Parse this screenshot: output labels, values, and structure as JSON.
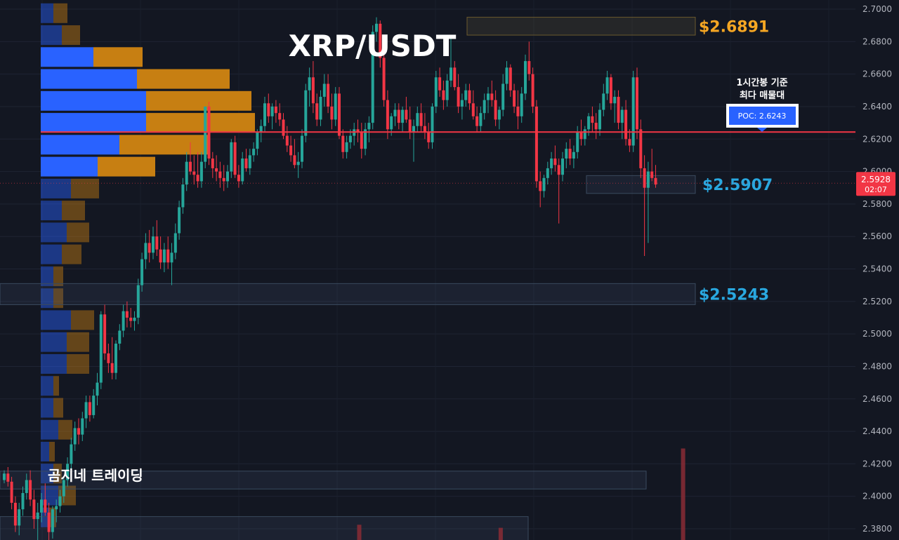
{
  "colors": {
    "background": "#131722",
    "up": "#26a69a",
    "down": "#f23645",
    "poc_line": "#f23645",
    "vp_up": "#2962ff",
    "vp_down": "#c77f12",
    "label_orange": "#f5a623",
    "label_blue": "#29a8e0",
    "price_badge": "#f23645"
  },
  "chart_data": {
    "type": "candlestick",
    "title": "XRP/USDT",
    "watermark": "곰지네 트레이딩",
    "ylim": [
      2.37,
      2.705
    ],
    "y_ticks": [
      "2.7000",
      "2.6800",
      "2.6600",
      "2.6400",
      "2.6200",
      "2.6000",
      "2.5800",
      "2.5600",
      "2.5400",
      "2.5200",
      "2.5000",
      "2.4800",
      "2.4600",
      "2.4400",
      "2.4200",
      "2.4000",
      "2.3800"
    ],
    "last_price": "2.5928",
    "countdown": "02:07",
    "poc": {
      "value": 2.6243,
      "label": "POC: 2.6243",
      "note_line1": "1시간봉 기준",
      "note_line2": "최다 매물대"
    },
    "levels": [
      {
        "label": "$2.6891",
        "low": 2.684,
        "high": 2.695,
        "color": "orange"
      },
      {
        "label": "$2.5907",
        "low": 2.5865,
        "high": 2.5975,
        "color": "blue"
      },
      {
        "label": "$2.5243",
        "low": 2.518,
        "high": 2.531,
        "color": "blue"
      }
    ],
    "extra_zones": [
      {
        "low": 2.4045,
        "high": 2.4155
      },
      {
        "low": 2.366,
        "high": 2.3875
      }
    ],
    "volume_profile_rows": [
      {
        "price": 2.6975,
        "up": 18,
        "down": 20
      },
      {
        "price": 2.684,
        "up": 30,
        "down": 26
      },
      {
        "price": 2.6705,
        "up": 75,
        "down": 70
      },
      {
        "price": 2.657,
        "up": 137,
        "down": 132
      },
      {
        "price": 2.6435,
        "up": 150,
        "down": 150
      },
      {
        "price": 2.63,
        "up": 150,
        "down": 155
      },
      {
        "price": 2.6165,
        "up": 112,
        "down": 127
      },
      {
        "price": 2.603,
        "up": 81,
        "down": 82
      },
      {
        "price": 2.5895,
        "up": 43,
        "down": 40
      },
      {
        "price": 2.576,
        "up": 30,
        "down": 33
      },
      {
        "price": 2.5625,
        "up": 37,
        "down": 32
      },
      {
        "price": 2.549,
        "up": 30,
        "down": 28
      },
      {
        "price": 2.5355,
        "up": 18,
        "down": 14
      },
      {
        "price": 2.522,
        "up": 18,
        "down": 14
      },
      {
        "price": 2.5085,
        "up": 43,
        "down": 33
      },
      {
        "price": 2.495,
        "up": 37,
        "down": 32
      },
      {
        "price": 2.4815,
        "up": 37,
        "down": 32
      },
      {
        "price": 2.468,
        "up": 18,
        "down": 8
      },
      {
        "price": 2.4545,
        "up": 18,
        "down": 14
      },
      {
        "price": 2.441,
        "up": 25,
        "down": 20
      },
      {
        "price": 2.4275,
        "up": 12,
        "down": 8
      },
      {
        "price": 2.414,
        "up": 18,
        "down": 12
      },
      {
        "price": 2.4005,
        "up": 25,
        "down": 25
      },
      {
        "price": 2.387,
        "up": 12,
        "down": 10
      }
    ],
    "candles": [
      [
        2.41,
        2.416,
        2.408,
        2.414
      ],
      [
        2.414,
        2.418,
        2.406,
        2.409
      ],
      [
        2.409,
        2.412,
        2.392,
        2.396
      ],
      [
        2.396,
        2.4,
        2.378,
        2.382
      ],
      [
        2.382,
        2.396,
        2.376,
        2.392
      ],
      [
        2.392,
        2.406,
        2.388,
        2.402
      ],
      [
        2.402,
        2.414,
        2.398,
        2.41
      ],
      [
        2.41,
        2.416,
        2.394,
        2.398
      ],
      [
        2.398,
        2.404,
        2.38,
        2.386
      ],
      [
        2.386,
        2.396,
        2.372,
        2.39
      ],
      [
        2.39,
        2.402,
        2.384,
        2.398
      ],
      [
        2.398,
        2.408,
        2.388,
        2.39
      ],
      [
        2.39,
        2.396,
        2.372,
        2.378
      ],
      [
        2.378,
        2.394,
        2.374,
        2.392
      ],
      [
        2.392,
        2.398,
        2.384,
        2.394
      ],
      [
        2.394,
        2.404,
        2.39,
        2.4
      ],
      [
        2.4,
        2.412,
        2.396,
        2.41
      ],
      [
        2.41,
        2.424,
        2.406,
        2.42
      ],
      [
        2.42,
        2.436,
        2.416,
        2.432
      ],
      [
        2.432,
        2.446,
        2.428,
        2.442
      ],
      [
        2.442,
        2.448,
        2.432,
        2.438
      ],
      [
        2.438,
        2.452,
        2.434,
        2.448
      ],
      [
        2.448,
        2.462,
        2.442,
        2.458
      ],
      [
        2.458,
        2.462,
        2.446,
        2.45
      ],
      [
        2.45,
        2.466,
        2.448,
        2.462
      ],
      [
        2.462,
        2.476,
        2.456,
        2.47
      ],
      [
        2.47,
        2.514,
        2.466,
        2.512
      ],
      [
        2.512,
        2.518,
        2.484,
        2.488
      ],
      [
        2.488,
        2.494,
        2.476,
        2.482
      ],
      [
        2.482,
        2.498,
        2.472,
        2.476
      ],
      [
        2.476,
        2.496,
        2.472,
        2.494
      ],
      [
        2.494,
        2.506,
        2.49,
        2.502
      ],
      [
        2.502,
        2.518,
        2.498,
        2.514
      ],
      [
        2.514,
        2.52,
        2.504,
        2.51
      ],
      [
        2.51,
        2.516,
        2.504,
        2.508
      ],
      [
        2.508,
        2.514,
        2.502,
        2.51
      ],
      [
        2.51,
        2.534,
        2.506,
        2.53
      ],
      [
        2.53,
        2.55,
        2.526,
        2.546
      ],
      [
        2.546,
        2.562,
        2.54,
        2.556
      ],
      [
        2.556,
        2.564,
        2.544,
        2.55
      ],
      [
        2.55,
        2.566,
        2.546,
        2.56
      ],
      [
        2.56,
        2.57,
        2.548,
        2.552
      ],
      [
        2.552,
        2.56,
        2.54,
        2.544
      ],
      [
        2.544,
        2.556,
        2.538,
        2.552
      ],
      [
        2.552,
        2.56,
        2.54,
        2.544
      ],
      [
        2.544,
        2.556,
        2.53,
        2.55
      ],
      [
        2.55,
        2.568,
        2.546,
        2.562
      ],
      [
        2.562,
        2.582,
        2.558,
        2.578
      ],
      [
        2.578,
        2.596,
        2.574,
        2.592
      ],
      [
        2.592,
        2.612,
        2.588,
        2.606
      ],
      [
        2.606,
        2.618,
        2.598,
        2.6
      ],
      [
        2.6,
        2.61,
        2.592,
        2.598
      ],
      [
        2.598,
        2.612,
        2.59,
        2.594
      ],
      [
        2.594,
        2.612,
        2.59,
        2.606
      ],
      [
        2.606,
        2.64,
        2.602,
        2.64
      ],
      [
        2.64,
        2.643,
        2.604,
        2.608
      ],
      [
        2.608,
        2.612,
        2.596,
        2.602
      ],
      [
        2.602,
        2.61,
        2.594,
        2.6
      ],
      [
        2.6,
        2.606,
        2.59,
        2.596
      ],
      [
        2.596,
        2.604,
        2.588,
        2.594
      ],
      [
        2.594,
        2.604,
        2.59,
        2.6
      ],
      [
        2.6,
        2.62,
        2.596,
        2.618
      ],
      [
        2.618,
        2.622,
        2.596,
        2.598
      ],
      [
        2.598,
        2.604,
        2.59,
        2.594
      ],
      [
        2.594,
        2.612,
        2.592,
        2.608
      ],
      [
        2.608,
        2.614,
        2.6,
        2.602
      ],
      [
        2.602,
        2.614,
        2.598,
        2.61
      ],
      [
        2.61,
        2.618,
        2.606,
        2.614
      ],
      [
        2.614,
        2.626,
        2.61,
        2.624
      ],
      [
        2.624,
        2.632,
        2.618,
        2.628
      ],
      [
        2.628,
        2.646,
        2.624,
        2.642
      ],
      [
        2.642,
        2.648,
        2.63,
        2.634
      ],
      [
        2.634,
        2.642,
        2.626,
        2.64
      ],
      [
        2.64,
        2.644,
        2.63,
        2.636
      ],
      [
        2.636,
        2.642,
        2.628,
        2.632
      ],
      [
        2.632,
        2.636,
        2.62,
        2.622
      ],
      [
        2.622,
        2.628,
        2.612,
        2.616
      ],
      [
        2.616,
        2.622,
        2.606,
        2.61
      ],
      [
        2.61,
        2.62,
        2.602,
        2.604
      ],
      [
        2.604,
        2.612,
        2.596,
        2.606
      ],
      [
        2.606,
        2.626,
        2.602,
        2.622
      ],
      [
        2.622,
        2.654,
        2.618,
        2.65
      ],
      [
        2.65,
        2.664,
        2.64,
        2.658
      ],
      [
        2.658,
        2.668,
        2.636,
        2.642
      ],
      [
        2.642,
        2.648,
        2.628,
        2.632
      ],
      [
        2.632,
        2.65,
        2.628,
        2.646
      ],
      [
        2.646,
        2.66,
        2.64,
        2.654
      ],
      [
        2.654,
        2.66,
        2.636,
        2.64
      ],
      [
        2.64,
        2.648,
        2.626,
        2.632
      ],
      [
        2.632,
        2.652,
        2.628,
        2.648
      ],
      [
        2.648,
        2.652,
        2.62,
        2.622
      ],
      [
        2.622,
        2.626,
        2.608,
        2.612
      ],
      [
        2.612,
        2.622,
        2.608,
        2.618
      ],
      [
        2.618,
        2.626,
        2.614,
        2.622
      ],
      [
        2.622,
        2.63,
        2.616,
        2.626
      ],
      [
        2.626,
        2.632,
        2.618,
        2.624
      ],
      [
        2.624,
        2.63,
        2.608,
        2.614
      ],
      [
        2.614,
        2.63,
        2.61,
        2.626
      ],
      [
        2.626,
        2.634,
        2.618,
        2.63
      ],
      [
        2.63,
        2.69,
        2.626,
        2.686
      ],
      [
        2.686,
        2.695,
        2.68,
        2.691
      ],
      [
        2.691,
        2.693,
        2.664,
        2.67
      ],
      [
        2.67,
        2.676,
        2.64,
        2.644
      ],
      [
        2.644,
        2.65,
        2.62,
        2.626
      ],
      [
        2.626,
        2.636,
        2.622,
        2.634
      ],
      [
        2.634,
        2.642,
        2.628,
        2.638
      ],
      [
        2.638,
        2.642,
        2.626,
        2.63
      ],
      [
        2.63,
        2.64,
        2.624,
        2.638
      ],
      [
        2.638,
        2.646,
        2.63,
        2.632
      ],
      [
        2.632,
        2.64,
        2.62,
        2.624
      ],
      [
        2.624,
        2.632,
        2.606,
        2.628
      ],
      [
        2.628,
        2.64,
        2.624,
        2.636
      ],
      [
        2.636,
        2.642,
        2.624,
        2.628
      ],
      [
        2.628,
        2.636,
        2.62,
        2.624
      ],
      [
        2.624,
        2.63,
        2.614,
        2.618
      ],
      [
        2.618,
        2.642,
        2.614,
        2.64
      ],
      [
        2.64,
        2.662,
        2.636,
        2.658
      ],
      [
        2.658,
        2.664,
        2.646,
        2.65
      ],
      [
        2.65,
        2.656,
        2.638,
        2.644
      ],
      [
        2.644,
        2.66,
        2.64,
        2.656
      ],
      [
        2.656,
        2.684,
        2.652,
        2.664
      ],
      [
        2.664,
        2.668,
        2.65,
        2.652
      ],
      [
        2.652,
        2.66,
        2.636,
        2.64
      ],
      [
        2.64,
        2.648,
        2.632,
        2.644
      ],
      [
        2.644,
        2.654,
        2.64,
        2.65
      ],
      [
        2.65,
        2.654,
        2.638,
        2.642
      ],
      [
        2.642,
        2.65,
        2.632,
        2.634
      ],
      [
        2.634,
        2.64,
        2.624,
        2.628
      ],
      [
        2.628,
        2.64,
        2.624,
        2.636
      ],
      [
        2.636,
        2.648,
        2.632,
        2.644
      ],
      [
        2.644,
        2.652,
        2.636,
        2.648
      ],
      [
        2.648,
        2.656,
        2.64,
        2.644
      ],
      [
        2.644,
        2.65,
        2.628,
        2.632
      ],
      [
        2.632,
        2.64,
        2.626,
        2.638
      ],
      [
        2.638,
        2.66,
        2.634,
        2.654
      ],
      [
        2.654,
        2.668,
        2.65,
        2.664
      ],
      [
        2.664,
        2.666,
        2.646,
        2.65
      ],
      [
        2.65,
        2.654,
        2.636,
        2.64
      ],
      [
        2.64,
        2.65,
        2.626,
        2.634
      ],
      [
        2.634,
        2.652,
        2.63,
        2.648
      ],
      [
        2.648,
        2.672,
        2.644,
        2.668
      ],
      [
        2.668,
        2.68,
        2.656,
        2.66
      ],
      [
        2.66,
        2.664,
        2.636,
        2.64
      ],
      [
        2.64,
        2.644,
        2.59,
        2.594
      ],
      [
        2.594,
        2.6,
        2.578,
        2.588
      ],
      [
        2.588,
        2.598,
        2.584,
        2.596
      ],
      [
        2.596,
        2.606,
        2.592,
        2.602
      ],
      [
        2.602,
        2.612,
        2.598,
        2.608
      ],
      [
        2.608,
        2.616,
        2.6,
        2.604
      ],
      [
        2.604,
        2.608,
        2.568,
        2.598
      ],
      [
        2.598,
        2.612,
        2.594,
        2.608
      ],
      [
        2.608,
        2.618,
        2.602,
        2.614
      ],
      [
        2.614,
        2.62,
        2.604,
        2.608
      ],
      [
        2.608,
        2.616,
        2.602,
        2.612
      ],
      [
        2.612,
        2.628,
        2.608,
        2.624
      ],
      [
        2.624,
        2.632,
        2.616,
        2.62
      ],
      [
        2.62,
        2.628,
        2.616,
        2.626
      ],
      [
        2.626,
        2.636,
        2.622,
        2.634
      ],
      [
        2.634,
        2.64,
        2.624,
        2.63
      ],
      [
        2.63,
        2.636,
        2.62,
        2.626
      ],
      [
        2.626,
        2.642,
        2.622,
        2.638
      ],
      [
        2.638,
        2.654,
        2.634,
        2.648
      ],
      [
        2.648,
        2.662,
        2.644,
        2.658
      ],
      [
        2.658,
        2.66,
        2.638,
        2.642
      ],
      [
        2.642,
        2.65,
        2.63,
        2.646
      ],
      [
        2.646,
        2.65,
        2.626,
        2.63
      ],
      [
        2.63,
        2.64,
        2.62,
        2.638
      ],
      [
        2.638,
        2.644,
        2.616,
        2.62
      ],
      [
        2.62,
        2.626,
        2.612,
        2.616
      ],
      [
        2.616,
        2.662,
        2.612,
        2.658
      ],
      [
        2.658,
        2.664,
        2.62,
        2.626
      ],
      [
        2.626,
        2.632,
        2.596,
        2.602
      ],
      [
        2.602,
        2.61,
        2.548,
        2.59
      ],
      [
        2.59,
        2.606,
        2.556,
        2.6
      ],
      [
        2.6,
        2.614,
        2.594,
        2.596
      ],
      [
        2.596,
        2.604,
        2.59,
        2.592
      ]
    ],
    "volume_bars": [
      {
        "index": 95,
        "height": 0.15
      },
      {
        "index": 133,
        "height": 0.12
      },
      {
        "index": 182,
        "height": 0.9
      }
    ]
  }
}
